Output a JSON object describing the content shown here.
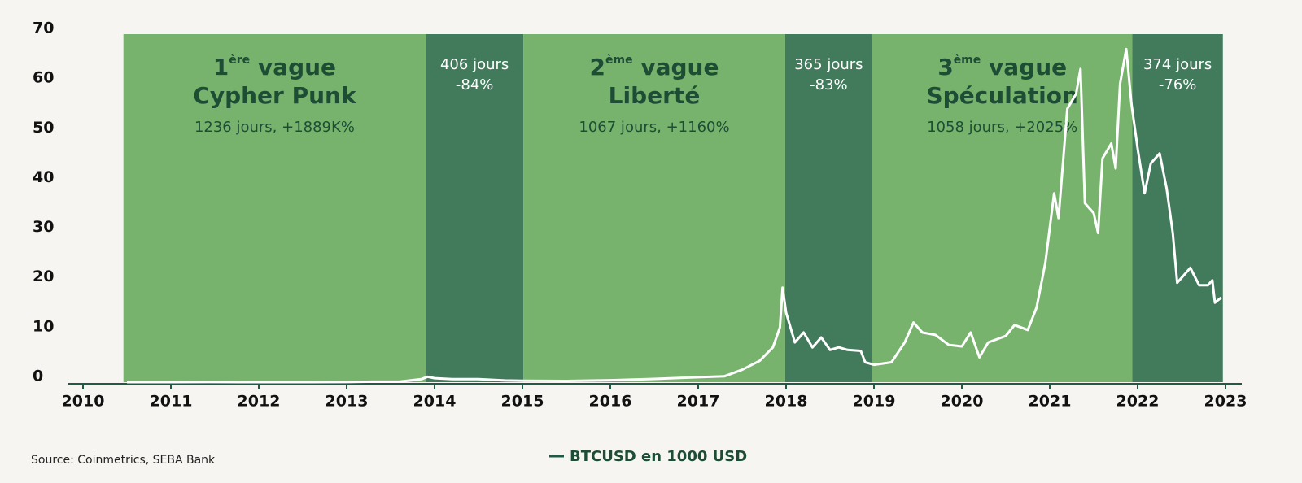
{
  "chart_data": {
    "type": "line",
    "source": "Source: Coinmetrics, SEBA Bank",
    "xlim": [
      2010,
      2023
    ],
    "xticks": [
      2010,
      2011,
      2012,
      2013,
      2014,
      2015,
      2016,
      2017,
      2018,
      2019,
      2020,
      2021,
      2022,
      2023
    ],
    "ylim": [
      0,
      70
    ],
    "yticks": [
      0,
      10,
      20,
      30,
      40,
      50,
      60,
      70
    ],
    "periods": [
      {
        "start": 2010.46,
        "end": 2013.9,
        "color": "#77b36d",
        "number": "1",
        "sup": "ère",
        "word": "vague",
        "name": "Cypher Punk",
        "note": "1236 jours, +1889K%"
      },
      {
        "start": 2013.9,
        "end": 2015.01,
        "color": "#427a5c",
        "lines": [
          "406 jours",
          "-84%"
        ]
      },
      {
        "start": 2015.01,
        "end": 2017.99,
        "color": "#77b36d",
        "number": "2",
        "sup": "ème",
        "word": "vague",
        "name": "Liberté",
        "note": "1067 jours, +1160%"
      },
      {
        "start": 2017.99,
        "end": 2018.98,
        "color": "#427a5c",
        "lines": [
          "365 jours",
          "-83%"
        ]
      },
      {
        "start": 2018.98,
        "end": 2021.94,
        "color": "#77b36d",
        "number": "3",
        "sup": "ème",
        "word": "vague",
        "name": "Spéculation",
        "note": "1058 jours, +2025%"
      },
      {
        "start": 2021.94,
        "end": 2022.97,
        "color": "#427a5c",
        "lines": [
          "374 jours",
          "-76%"
        ]
      }
    ],
    "x": [
      2010.5,
      2011.0,
      2011.45,
      2011.8,
      2012.0,
      2012.5,
      2013.0,
      2013.3,
      2013.6,
      2013.85,
      2013.92,
      2014.0,
      2014.2,
      2014.5,
      2014.8,
      2015.0,
      2015.5,
      2016.0,
      2016.5,
      2017.0,
      2017.3,
      2017.5,
      2017.7,
      2017.85,
      2017.93,
      2017.96,
      2018.0,
      2018.05,
      2018.1,
      2018.2,
      2018.3,
      2018.4,
      2018.5,
      2018.6,
      2018.7,
      2018.85,
      2018.9,
      2019.0,
      2019.2,
      2019.35,
      2019.45,
      2019.55,
      2019.7,
      2019.85,
      2020.0,
      2020.1,
      2020.2,
      2020.3,
      2020.5,
      2020.6,
      2020.75,
      2020.85,
      2020.95,
      2021.05,
      2021.1,
      2021.2,
      2021.3,
      2021.35,
      2021.4,
      2021.5,
      2021.55,
      2021.6,
      2021.7,
      2021.75,
      2021.8,
      2021.87,
      2021.93,
      2022.0,
      2022.08,
      2022.15,
      2022.25,
      2022.33,
      2022.4,
      2022.45,
      2022.55,
      2022.6,
      2022.7,
      2022.8,
      2022.85,
      2022.88,
      2022.95
    ],
    "series": [
      {
        "name": "BTCUSD en 1000 USD",
        "color": "#ffffff",
        "values": [
          0,
          0.001,
          0.015,
          0.003,
          0.005,
          0.007,
          0.013,
          0.1,
          0.1,
          0.6,
          1.1,
          0.8,
          0.6,
          0.6,
          0.35,
          0.3,
          0.25,
          0.4,
          0.65,
          1.0,
          1.2,
          2.5,
          4.3,
          7,
          11,
          19,
          14,
          11,
          8,
          10,
          7,
          9,
          6.5,
          7,
          6.5,
          6.3,
          4,
          3.5,
          4,
          8,
          12,
          10,
          9.5,
          7.5,
          7.2,
          10,
          5,
          8,
          9.3,
          11.5,
          10.5,
          15,
          24,
          38,
          33,
          55,
          58,
          63,
          36,
          34,
          30,
          45,
          48,
          43,
          60,
          67,
          56,
          47,
          38,
          44,
          46,
          39,
          30,
          20,
          22,
          23,
          19.5,
          19.5,
          20.5,
          16,
          17
        ]
      }
    ]
  }
}
